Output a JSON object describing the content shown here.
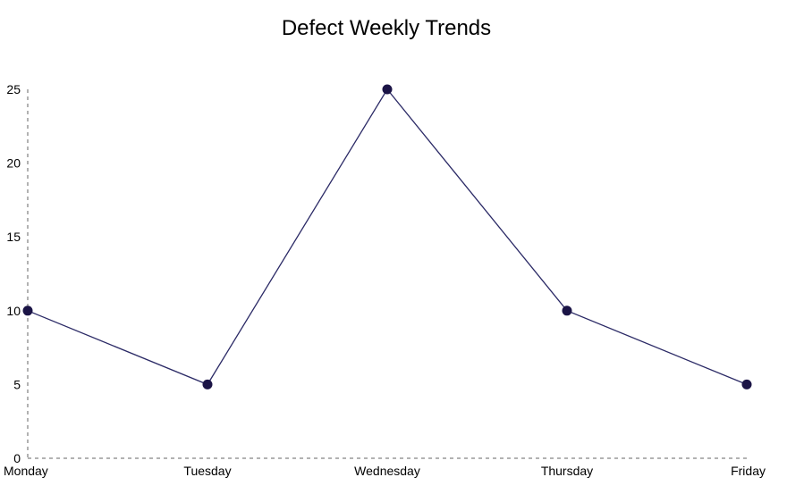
{
  "chart_data": {
    "type": "line",
    "title": "Defect Weekly Trends",
    "xlabel": "",
    "ylabel": "",
    "categories": [
      "Monday",
      "Tuesday",
      "Wednesday",
      "Thursday",
      "Friday"
    ],
    "series": [
      {
        "values": [
          10,
          5,
          25,
          10,
          5
        ]
      }
    ],
    "ylim": [
      0,
      25
    ],
    "yticks": [
      0,
      5,
      10,
      15,
      20,
      25
    ],
    "grid": false,
    "axis_style": "dashed",
    "colors": {
      "line": "#2b2a66",
      "marker": "#1b1446",
      "axis": "#666666",
      "text": "#000000"
    }
  }
}
